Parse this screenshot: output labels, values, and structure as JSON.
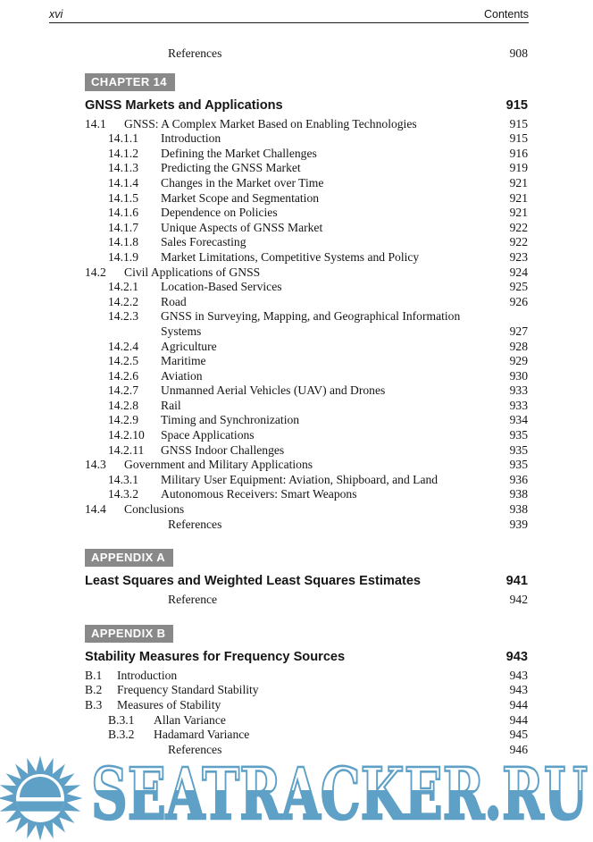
{
  "header": {
    "folio": "xvi",
    "title": "Contents"
  },
  "top_entry": {
    "title": "References",
    "page": "908"
  },
  "sections": [
    {
      "appendix": false,
      "badge": "CHAPTER 14",
      "title": "GNSS Markets and Applications",
      "page": "915",
      "entries": [
        {
          "level": 1,
          "num": "14.1",
          "title": "GNSS: A Complex Market Based on Enabling Technologies",
          "page": "915"
        },
        {
          "level": 2,
          "num": "14.1.1",
          "title": "Introduction",
          "page": "915"
        },
        {
          "level": 2,
          "num": "14.1.2",
          "title": "Defining the Market Challenges",
          "page": "916"
        },
        {
          "level": 2,
          "num": "14.1.3",
          "title": "Predicting the GNSS Market",
          "page": "919"
        },
        {
          "level": 2,
          "num": "14.1.4",
          "title": "Changes in the Market over Time",
          "page": "921"
        },
        {
          "level": 2,
          "num": "14.1.5",
          "title": "Market Scope and Segmentation",
          "page": "921"
        },
        {
          "level": 2,
          "num": "14.1.6",
          "title": "Dependence on Policies",
          "page": "921"
        },
        {
          "level": 2,
          "num": "14.1.7",
          "title": "Unique Aspects of GNSS Market",
          "page": "922"
        },
        {
          "level": 2,
          "num": "14.1.8",
          "title": "Sales Forecasting",
          "page": "922"
        },
        {
          "level": 2,
          "num": "14.1.9",
          "title": "Market Limitations, Competitive Systems and Policy",
          "page": "923"
        },
        {
          "level": 1,
          "num": "14.2",
          "title": "Civil Applications of GNSS",
          "page": "924"
        },
        {
          "level": 2,
          "num": "14.2.1",
          "title": "Location-Based Services",
          "page": "925"
        },
        {
          "level": 2,
          "num": "14.2.2",
          "title": "Road",
          "page": "926"
        },
        {
          "level": 2,
          "num": "14.2.3",
          "title": "GNSS in Surveying, Mapping, and Geographical Information Systems",
          "page": "927"
        },
        {
          "level": 2,
          "num": "14.2.4",
          "title": "Agriculture",
          "page": "928"
        },
        {
          "level": 2,
          "num": "14.2.5",
          "title": "Maritime",
          "page": "929"
        },
        {
          "level": 2,
          "num": "14.2.6",
          "title": "Aviation",
          "page": "930"
        },
        {
          "level": 2,
          "num": "14.2.7",
          "title": "Unmanned Aerial Vehicles (UAV) and Drones",
          "page": "933"
        },
        {
          "level": 2,
          "num": "14.2.8",
          "title": "Rail",
          "page": "933"
        },
        {
          "level": 2,
          "num": "14.2.9",
          "title": "Timing and Synchronization",
          "page": "934"
        },
        {
          "level": 2,
          "num": "14.2.10",
          "title": "Space Applications",
          "page": "935"
        },
        {
          "level": 2,
          "num": "14.2.11",
          "title": "GNSS Indoor Challenges",
          "page": "935"
        },
        {
          "level": 1,
          "num": "14.3",
          "title": "Government and Military Applications",
          "page": "935"
        },
        {
          "level": 2,
          "num": "14.3.1",
          "title": "Military User Equipment: Aviation, Shipboard, and Land",
          "page": "936"
        },
        {
          "level": 2,
          "num": "14.3.2",
          "title": "Autonomous Receivers: Smart Weapons",
          "page": "938"
        },
        {
          "level": 1,
          "num": "14.4",
          "title": "Conclusions",
          "page": "938"
        },
        {
          "kind": "ref",
          "title": "References",
          "page": "939"
        }
      ]
    },
    {
      "appendix": true,
      "badge": "APPENDIX A",
      "title": "Least Squares and Weighted Least Squares Estimates",
      "page": "941",
      "entries": [
        {
          "kind": "ref",
          "title": "Reference",
          "page": "942"
        }
      ]
    },
    {
      "appendix": true,
      "badge": "APPENDIX B",
      "title": "Stability Measures for Frequency Sources",
      "page": "943",
      "entries": [
        {
          "level": 1,
          "num": "B.1",
          "title": "Introduction",
          "page": "943"
        },
        {
          "level": 1,
          "num": "B.2",
          "title": "Frequency Standard Stability",
          "page": "943"
        },
        {
          "level": 1,
          "num": "B.3",
          "title": "Measures of Stability",
          "page": "944"
        },
        {
          "level": 2,
          "num": "B.3.1",
          "title": "Allan Variance",
          "page": "944"
        },
        {
          "level": 2,
          "num": "B.3.2",
          "title": "Hadamard Variance",
          "page": "945"
        },
        {
          "kind": "ref",
          "title": "References",
          "page": "946"
        }
      ]
    }
  ],
  "watermark": {
    "text": "SEATRACKER.RU",
    "blue": "#5FA0C7"
  },
  "colors": {
    "badge_bg": "#898989",
    "badge_text": "#ffffff",
    "rule": "#1b1b1b"
  }
}
